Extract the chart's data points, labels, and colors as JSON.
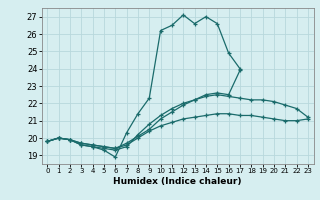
{
  "title": "",
  "xlabel": "Humidex (Indice chaleur)",
  "ylabel": "",
  "bg_color": "#d6eef0",
  "grid_color": "#b8d8dc",
  "line_color": "#1a6b6b",
  "xlim": [
    -0.5,
    23.5
  ],
  "ylim": [
    18.5,
    27.5
  ],
  "xticks": [
    0,
    1,
    2,
    3,
    4,
    5,
    6,
    7,
    8,
    9,
    10,
    11,
    12,
    13,
    14,
    15,
    16,
    17,
    18,
    19,
    20,
    21,
    22,
    23
  ],
  "yticks": [
    19,
    20,
    21,
    22,
    23,
    24,
    25,
    26,
    27
  ],
  "series": [
    {
      "x": [
        0,
        1,
        2,
        3,
        4,
        5,
        6,
        7,
        8,
        9,
        10,
        11,
        12,
        13,
        14,
        15,
        16,
        17
      ],
      "y": [
        19.8,
        20.0,
        19.9,
        19.6,
        19.5,
        19.3,
        18.9,
        20.3,
        21.4,
        22.3,
        26.2,
        26.5,
        27.1,
        26.6,
        27.0,
        26.6,
        24.9,
        24.0
      ]
    },
    {
      "x": [
        0,
        1,
        2,
        3,
        4,
        5,
        6,
        7,
        8,
        9,
        10,
        11,
        12,
        13,
        14,
        15,
        16,
        17,
        18,
        19,
        20,
        21,
        22,
        23
      ],
      "y": [
        19.8,
        20.0,
        19.9,
        19.6,
        19.5,
        19.4,
        19.3,
        19.5,
        20.2,
        20.8,
        21.3,
        21.7,
        22.0,
        22.2,
        22.4,
        22.5,
        22.4,
        22.3,
        22.2,
        22.2,
        22.1,
        21.9,
        21.7,
        21.2
      ]
    },
    {
      "x": [
        0,
        1,
        2,
        3,
        4,
        5,
        6,
        7,
        8,
        9,
        10,
        11,
        12,
        13,
        14,
        15,
        16,
        17,
        18,
        19,
        20,
        21,
        22,
        23
      ],
      "y": [
        19.8,
        20.0,
        19.9,
        19.7,
        19.6,
        19.5,
        19.4,
        19.6,
        20.0,
        20.4,
        20.7,
        20.9,
        21.1,
        21.2,
        21.3,
        21.4,
        21.4,
        21.3,
        21.3,
        21.2,
        21.1,
        21.0,
        21.0,
        21.1
      ]
    },
    {
      "x": [
        0,
        1,
        2,
        3,
        4,
        5,
        6,
        7,
        8,
        9,
        10,
        11,
        12,
        13,
        14,
        15,
        16,
        17
      ],
      "y": [
        19.8,
        20.0,
        19.9,
        19.7,
        19.6,
        19.5,
        19.4,
        19.7,
        20.1,
        20.5,
        21.1,
        21.5,
        21.9,
        22.2,
        22.5,
        22.6,
        22.5,
        23.9
      ]
    }
  ]
}
